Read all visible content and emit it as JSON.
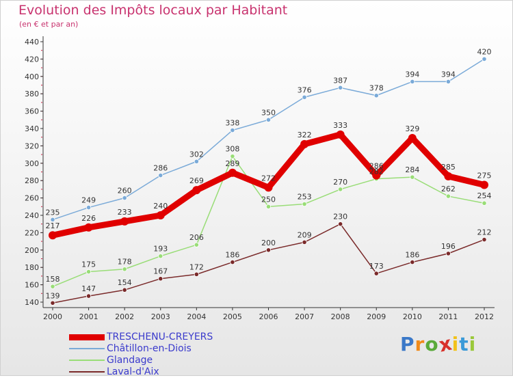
{
  "chart_data": {
    "type": "line",
    "title": "Evolution des Impôts locaux par Habitant",
    "subtitle": "(en € et par an)",
    "xlabel": "",
    "ylabel": "",
    "categories": [
      "2000",
      "2001",
      "2002",
      "2003",
      "2004",
      "2005",
      "2006",
      "2007",
      "2008",
      "2009",
      "2010",
      "2011",
      "2012"
    ],
    "ylim": [
      140,
      440
    ],
    "yticks": [
      140,
      160,
      180,
      200,
      220,
      240,
      260,
      280,
      300,
      320,
      340,
      360,
      380,
      400,
      420,
      440
    ],
    "grid": false,
    "legend_placement": "bottom-left",
    "series": [
      {
        "name": "TRESCHENU-CREYERS",
        "color": "#e00000",
        "values": [
          217,
          226,
          233,
          240,
          269,
          289,
          272,
          322,
          333,
          286,
          329,
          285,
          275
        ]
      },
      {
        "name": "Châtillon-en-Diois",
        "color": "#7aaad8",
        "values": [
          235,
          249,
          260,
          286,
          302,
          338,
          350,
          376,
          387,
          378,
          394,
          394,
          420
        ]
      },
      {
        "name": "Glandage",
        "color": "#99dd77",
        "values": [
          158,
          175,
          178,
          193,
          206,
          308,
          250,
          253,
          270,
          282,
          284,
          262,
          254
        ]
      },
      {
        "name": "Laval-d'Aix",
        "color": "#7a2a2a",
        "values": [
          139,
          147,
          154,
          167,
          172,
          186,
          200,
          209,
          230,
          173,
          186,
          196,
          212
        ]
      }
    ]
  },
  "brand": {
    "letters": [
      "P",
      "r",
      "o",
      "x",
      "i",
      "t",
      "i"
    ],
    "colors": [
      "#3a78c8",
      "#f08a1a",
      "#5aaa3a",
      "#d8302a",
      "#f2c21a",
      "#3a9ad8",
      "#9ac83a"
    ]
  }
}
